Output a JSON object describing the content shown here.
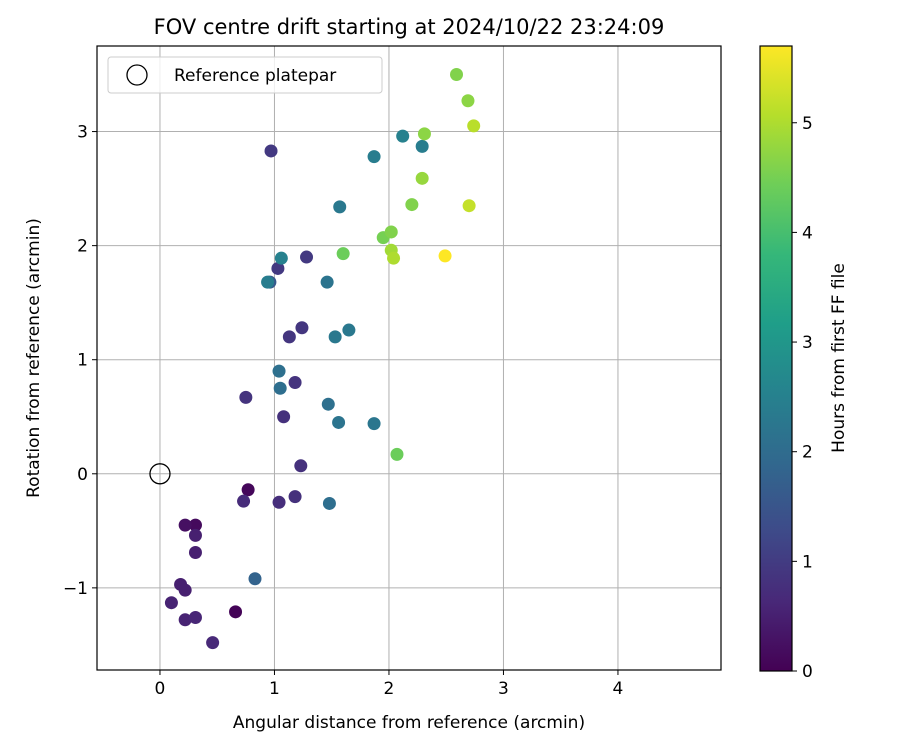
{
  "chart_data": {
    "type": "scatter",
    "title": "FOV centre drift starting at 2024/10/22 23:24:09",
    "xlabel": "Angular distance from reference (arcmin)",
    "ylabel": "Rotation from reference (arcmin)",
    "xlim": [
      -0.55,
      4.9
    ],
    "ylim": [
      -1.72,
      3.75
    ],
    "xticks": [
      0,
      1,
      2,
      3,
      4
    ],
    "yticks": [
      -1,
      0,
      1,
      2,
      3
    ],
    "xtick_labels": [
      "0",
      "1",
      "2",
      "3",
      "4"
    ],
    "ytick_labels": [
      "−1",
      "0",
      "1",
      "2",
      "3"
    ],
    "grid": true,
    "legend": {
      "placement": "top-left",
      "entries": [
        {
          "label": "Reference platepar",
          "marker": "open-circle"
        }
      ]
    },
    "reference_point": {
      "x": 0,
      "y": 0
    },
    "colorbar": {
      "label": "Hours from first FF file",
      "colormap": "viridis",
      "range": [
        0,
        5.7
      ],
      "ticks": [
        0,
        1,
        2,
        3,
        4,
        5
      ],
      "tick_labels": [
        "0",
        "1",
        "2",
        "3",
        "4",
        "5"
      ]
    },
    "points": [
      {
        "x": 0.66,
        "y": -1.21,
        "h": 0.05
      },
      {
        "x": 0.77,
        "y": -0.14,
        "h": 0.1
      },
      {
        "x": 0.31,
        "y": -0.45,
        "h": 0.15
      },
      {
        "x": 0.22,
        "y": -0.45,
        "h": 0.25
      },
      {
        "x": 0.31,
        "y": -0.54,
        "h": 0.5
      },
      {
        "x": 0.31,
        "y": -0.69,
        "h": 0.5
      },
      {
        "x": 0.18,
        "y": -0.97,
        "h": 0.5
      },
      {
        "x": 0.22,
        "y": -1.02,
        "h": 0.5
      },
      {
        "x": 0.1,
        "y": -1.13,
        "h": 0.55
      },
      {
        "x": 0.22,
        "y": -1.28,
        "h": 0.55
      },
      {
        "x": 0.31,
        "y": -1.26,
        "h": 0.6
      },
      {
        "x": 0.46,
        "y": -1.48,
        "h": 0.65
      },
      {
        "x": 0.73,
        "y": -0.24,
        "h": 0.7
      },
      {
        "x": 1.04,
        "y": -0.25,
        "h": 0.75
      },
      {
        "x": 1.18,
        "y": -0.2,
        "h": 0.8
      },
      {
        "x": 1.23,
        "y": 0.07,
        "h": 0.8
      },
      {
        "x": 1.08,
        "y": 0.5,
        "h": 0.8
      },
      {
        "x": 1.18,
        "y": 0.8,
        "h": 0.85
      },
      {
        "x": 0.75,
        "y": 0.67,
        "h": 0.85
      },
      {
        "x": 1.13,
        "y": 1.2,
        "h": 0.9
      },
      {
        "x": 1.24,
        "y": 1.28,
        "h": 0.9
      },
      {
        "x": 1.03,
        "y": 1.8,
        "h": 0.95
      },
      {
        "x": 1.28,
        "y": 1.9,
        "h": 0.95
      },
      {
        "x": 0.97,
        "y": 2.83,
        "h": 0.95
      },
      {
        "x": 0.96,
        "y": 1.68,
        "h": 1.6
      },
      {
        "x": 0.83,
        "y": -0.92,
        "h": 1.8
      },
      {
        "x": 1.48,
        "y": -0.26,
        "h": 2.05
      },
      {
        "x": 1.05,
        "y": 0.75,
        "h": 2.05
      },
      {
        "x": 1.04,
        "y": 0.9,
        "h": 2.1
      },
      {
        "x": 1.47,
        "y": 0.61,
        "h": 2.1
      },
      {
        "x": 1.56,
        "y": 0.45,
        "h": 2.2
      },
      {
        "x": 1.87,
        "y": 0.44,
        "h": 2.25
      },
      {
        "x": 1.53,
        "y": 1.2,
        "h": 2.3
      },
      {
        "x": 1.65,
        "y": 1.26,
        "h": 2.3
      },
      {
        "x": 1.46,
        "y": 1.68,
        "h": 2.2
      },
      {
        "x": 0.94,
        "y": 1.68,
        "h": 2.4
      },
      {
        "x": 1.06,
        "y": 1.89,
        "h": 2.5
      },
      {
        "x": 1.57,
        "y": 2.34,
        "h": 2.3
      },
      {
        "x": 1.87,
        "y": 2.78,
        "h": 2.4
      },
      {
        "x": 2.12,
        "y": 2.96,
        "h": 2.5
      },
      {
        "x": 2.29,
        "y": 2.87,
        "h": 2.4
      },
      {
        "x": 2.07,
        "y": 0.17,
        "h": 4.4
      },
      {
        "x": 1.6,
        "y": 1.93,
        "h": 4.4
      },
      {
        "x": 1.95,
        "y": 2.07,
        "h": 4.5
      },
      {
        "x": 2.02,
        "y": 2.12,
        "h": 4.6
      },
      {
        "x": 2.02,
        "y": 1.96,
        "h": 4.9
      },
      {
        "x": 2.04,
        "y": 1.89,
        "h": 5.0
      },
      {
        "x": 2.2,
        "y": 2.36,
        "h": 4.6
      },
      {
        "x": 2.29,
        "y": 2.59,
        "h": 4.8
      },
      {
        "x": 2.31,
        "y": 2.98,
        "h": 4.7
      },
      {
        "x": 2.59,
        "y": 3.5,
        "h": 4.6
      },
      {
        "x": 2.69,
        "y": 3.27,
        "h": 4.7
      },
      {
        "x": 2.74,
        "y": 3.05,
        "h": 5.1
      },
      {
        "x": 2.7,
        "y": 2.35,
        "h": 5.2
      },
      {
        "x": 2.49,
        "y": 1.91,
        "h": 5.7
      }
    ]
  }
}
